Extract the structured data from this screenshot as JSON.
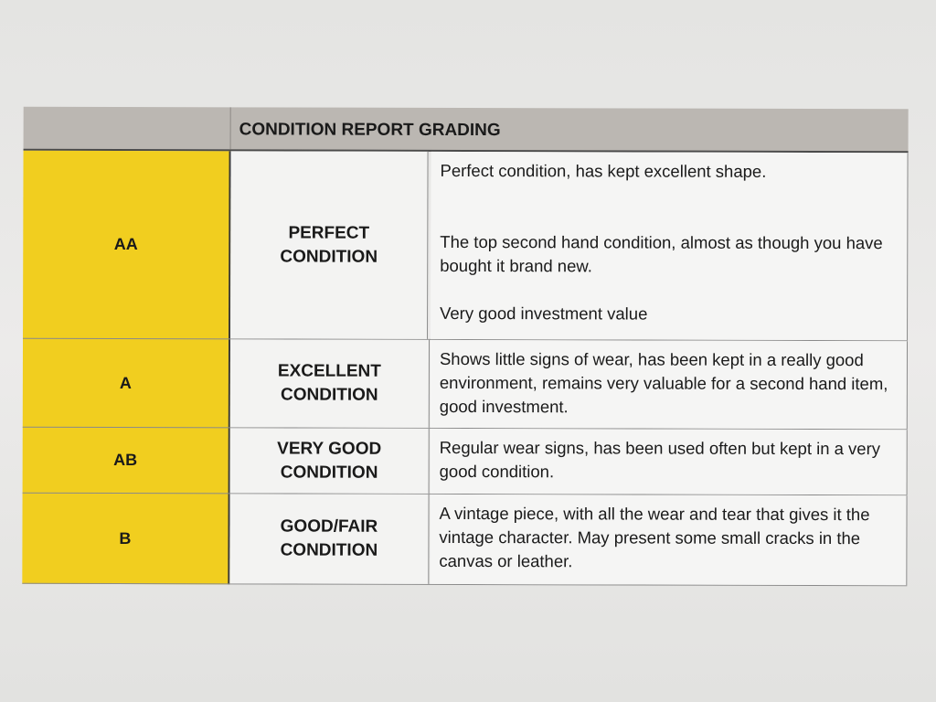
{
  "table": {
    "title": "CONDITION REPORT GRADING",
    "grade_color": "#f1ce1f",
    "rows": [
      {
        "grade": "AA",
        "condition": "PERFECT CONDITION",
        "descriptions": [
          "Perfect condition, has kept excellent shape.",
          "The top second hand condition, almost as though you have bought it brand new.",
          "Very good investment value"
        ]
      },
      {
        "grade": "A",
        "condition": "EXCELLENT CONDITION",
        "descriptions": [
          "Shows little signs of wear, has been kept in a really good environment, remains very valuable for a second hand item, good investment."
        ]
      },
      {
        "grade": "AB",
        "condition": "VERY GOOD CONDITION",
        "descriptions": [
          "Regular wear signs, has been used often but kept in a very good condition."
        ]
      },
      {
        "grade": "B",
        "condition": "GOOD/FAIR CONDITION",
        "descriptions": [
          "A vintage piece, with all the wear and tear that gives it the vintage character. May present some small cracks in the canvas or leather."
        ]
      }
    ]
  }
}
